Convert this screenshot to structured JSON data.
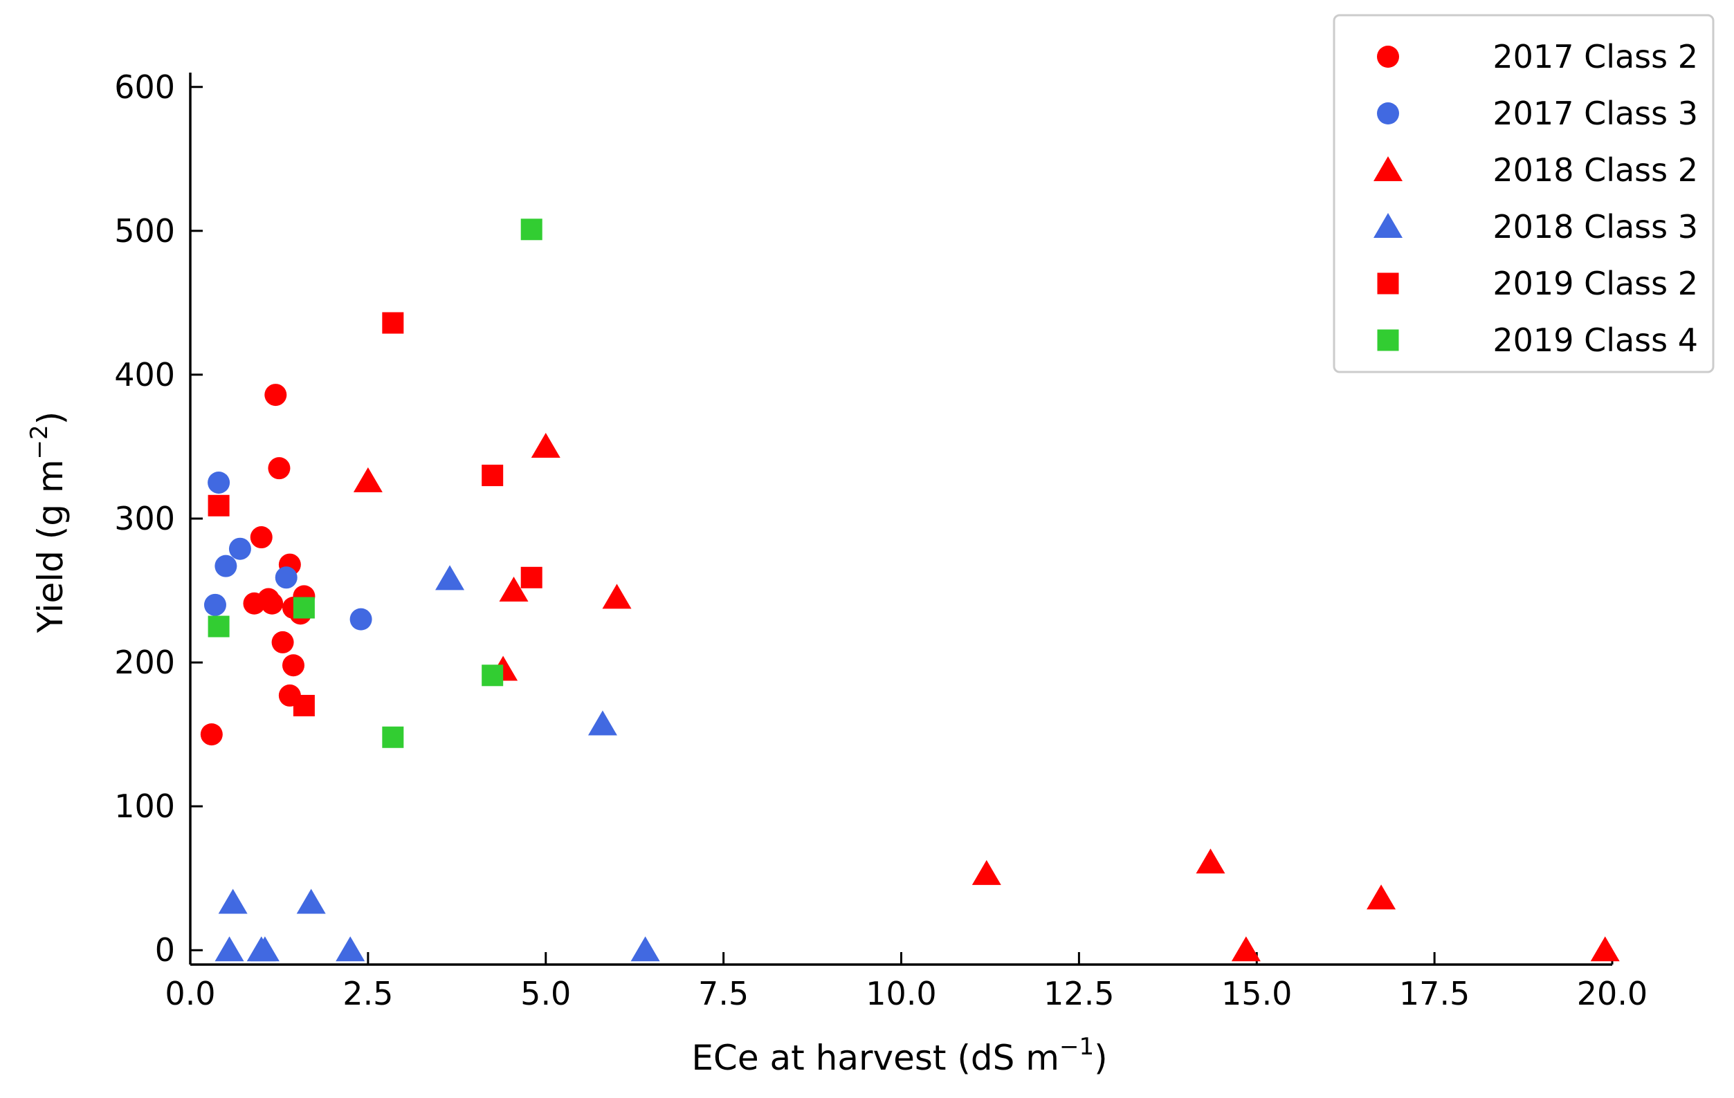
{
  "chart_data": {
    "type": "scatter",
    "title": "",
    "xlabel": "ECe at harvest (dS m",
    "xlabel_sup": "−1",
    "xlabel_end": ")",
    "ylabel": "Yield  (g m",
    "ylabel_sup": "−2",
    "ylabel_end": ")",
    "xlim": [
      0,
      20
    ],
    "ylim": [
      -10,
      610
    ],
    "xticks": [
      0,
      2.5,
      5,
      7.5,
      10,
      12.5,
      15,
      17.5,
      20
    ],
    "xtick_labels": [
      "0.0",
      "2.5",
      "5.0",
      "7.5",
      "10.0",
      "12.5",
      "15.0",
      "17.5",
      "20.0"
    ],
    "yticks": [
      0,
      100,
      200,
      300,
      400,
      500,
      600
    ],
    "ytick_labels": [
      "0",
      "100",
      "200",
      "300",
      "400",
      "500",
      "600"
    ],
    "grid": false,
    "legend_position": "top-right",
    "series": [
      {
        "name": "2017 Class 2",
        "marker": "circle",
        "color": "#ff0000",
        "points": [
          [
            0.3,
            150
          ],
          [
            0.9,
            241
          ],
          [
            1.0,
            287
          ],
          [
            1.1,
            244
          ],
          [
            1.15,
            241
          ],
          [
            1.2,
            386
          ],
          [
            1.25,
            335
          ],
          [
            1.3,
            214
          ],
          [
            1.4,
            268
          ],
          [
            1.45,
            238
          ],
          [
            1.4,
            177
          ],
          [
            1.45,
            198
          ],
          [
            1.55,
            234
          ],
          [
            1.6,
            246
          ]
        ]
      },
      {
        "name": "2017 Class 3",
        "marker": "circle",
        "color": "#4169e1",
        "points": [
          [
            0.35,
            240
          ],
          [
            0.4,
            325
          ],
          [
            0.5,
            267
          ],
          [
            0.7,
            279
          ],
          [
            1.35,
            259
          ],
          [
            2.4,
            230
          ]
        ]
      },
      {
        "name": "2018 Class 2",
        "marker": "triangle",
        "color": "#ff0000",
        "points": [
          [
            2.5,
            326
          ],
          [
            4.4,
            195
          ],
          [
            4.55,
            250
          ],
          [
            5.0,
            350
          ],
          [
            6.0,
            245
          ],
          [
            11.2,
            53
          ],
          [
            14.35,
            61
          ],
          [
            14.85,
            0
          ],
          [
            16.75,
            36
          ],
          [
            19.9,
            0
          ]
        ]
      },
      {
        "name": "2018 Class 3",
        "marker": "triangle",
        "color": "#4169e1",
        "points": [
          [
            0.55,
            0
          ],
          [
            0.6,
            33
          ],
          [
            1.0,
            0
          ],
          [
            1.05,
            0
          ],
          [
            1.7,
            33
          ],
          [
            2.25,
            0
          ],
          [
            3.65,
            258
          ],
          [
            5.8,
            157
          ],
          [
            6.4,
            0
          ]
        ]
      },
      {
        "name": "2019 Class 2",
        "marker": "square",
        "color": "#ff0000",
        "points": [
          [
            0.4,
            309
          ],
          [
            1.6,
            170
          ],
          [
            2.85,
            436
          ],
          [
            4.25,
            330
          ],
          [
            4.8,
            259
          ]
        ]
      },
      {
        "name": "2019 Class 4",
        "marker": "square",
        "color": "#32cd32",
        "points": [
          [
            0.4,
            225
          ],
          [
            1.6,
            238
          ],
          [
            2.85,
            148
          ],
          [
            4.25,
            191
          ],
          [
            4.8,
            501
          ]
        ]
      }
    ]
  }
}
